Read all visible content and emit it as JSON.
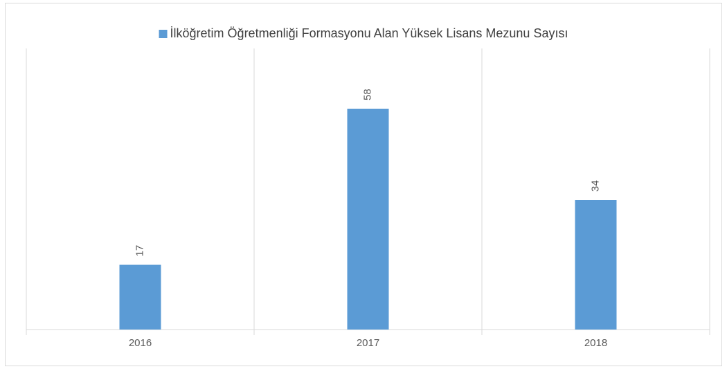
{
  "chart_data": {
    "type": "bar",
    "categories": [
      "2016",
      "2017",
      "2018"
    ],
    "series": [
      {
        "name": "İlköğretim Öğretmenliği Formasyonu Alan Yüksek Lisans Mezunu Sayısı",
        "color": "#5b9bd5",
        "values": [
          17,
          58,
          34
        ]
      }
    ],
    "legend": "top",
    "data_labels": true
  }
}
